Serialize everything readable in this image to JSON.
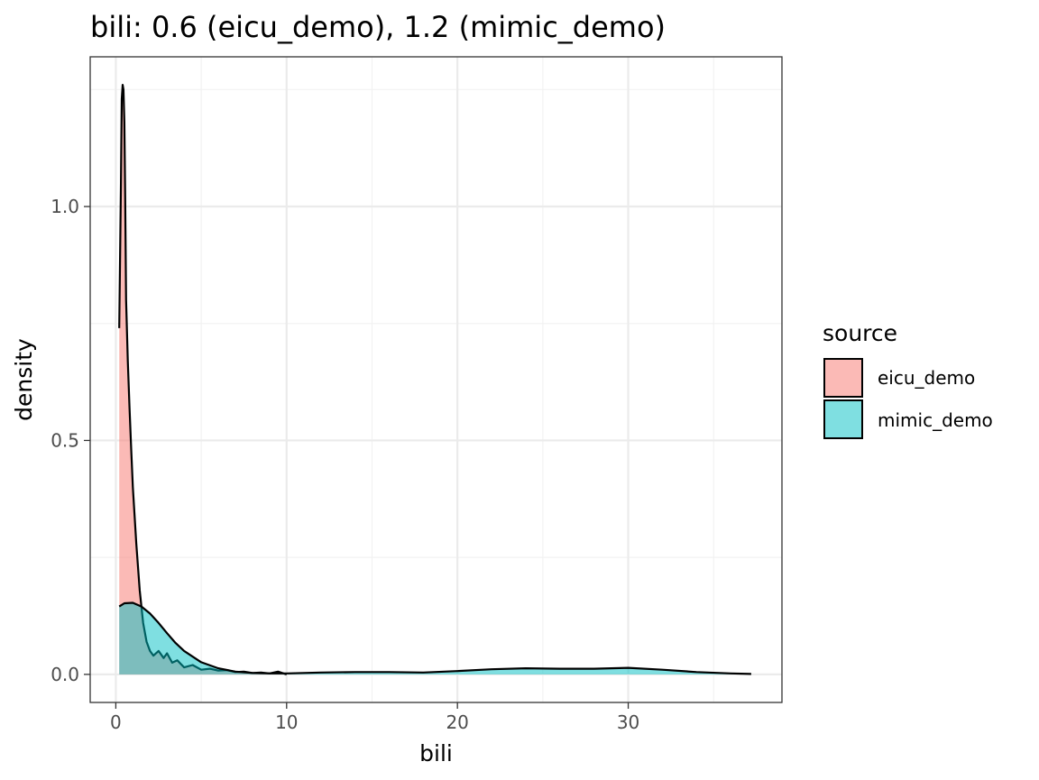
{
  "chart_data": {
    "type": "area",
    "title": "bili: 0.6 (eicu_demo), 1.2 (mimic_demo)",
    "xlabel": "bili",
    "ylabel": "density",
    "xlim": [
      -1.5,
      39
    ],
    "ylim": [
      -0.06,
      1.32
    ],
    "x_ticks": [
      0,
      10,
      20,
      30
    ],
    "x_tick_labels": [
      "0",
      "10",
      "20",
      "30"
    ],
    "y_ticks": [
      0.0,
      0.5,
      1.0
    ],
    "y_tick_labels": [
      "0.0",
      "0.5",
      "1.0"
    ],
    "grid": true,
    "legend": {
      "title": "source",
      "position": "right"
    },
    "series": [
      {
        "name": "eicu_demo",
        "fill": "#F8766D",
        "fill_opacity": 0.5,
        "x": [
          0.2,
          0.3,
          0.35,
          0.4,
          0.45,
          0.5,
          0.55,
          0.6,
          0.7,
          0.8,
          0.9,
          1.0,
          1.2,
          1.4,
          1.6,
          1.8,
          2.0,
          2.2,
          2.5,
          2.8,
          3.0,
          3.3,
          3.6,
          4.0,
          4.5,
          5.0,
          5.5,
          6.0,
          6.5,
          7.0,
          7.5,
          8.0,
          8.5,
          9.0,
          9.5,
          10.0
        ],
        "y": [
          0.74,
          1.05,
          1.23,
          1.26,
          1.25,
          1.18,
          1.02,
          0.8,
          0.67,
          0.57,
          0.48,
          0.4,
          0.28,
          0.18,
          0.11,
          0.07,
          0.05,
          0.04,
          0.05,
          0.035,
          0.045,
          0.025,
          0.03,
          0.015,
          0.02,
          0.01,
          0.012,
          0.008,
          0.009,
          0.005,
          0.006,
          0.003,
          0.004,
          0.002,
          0.006,
          0.0
        ]
      },
      {
        "name": "mimic_demo",
        "fill": "#00BFC4",
        "fill_opacity": 0.5,
        "x": [
          0.2,
          0.5,
          1.0,
          1.5,
          2.0,
          2.5,
          3.0,
          3.5,
          4.0,
          5.0,
          6.0,
          7.0,
          8.0,
          9.0,
          10.0,
          12.0,
          14.0,
          16.0,
          18.0,
          20.0,
          22.0,
          24.0,
          26.0,
          28.0,
          30.0,
          32.0,
          34.0,
          36.0,
          37.2
        ],
        "y": [
          0.145,
          0.152,
          0.153,
          0.145,
          0.13,
          0.11,
          0.088,
          0.067,
          0.05,
          0.026,
          0.013,
          0.006,
          0.003,
          0.002,
          0.002,
          0.004,
          0.005,
          0.005,
          0.004,
          0.007,
          0.011,
          0.013,
          0.012,
          0.012,
          0.014,
          0.01,
          0.005,
          0.002,
          0.001
        ]
      }
    ]
  }
}
